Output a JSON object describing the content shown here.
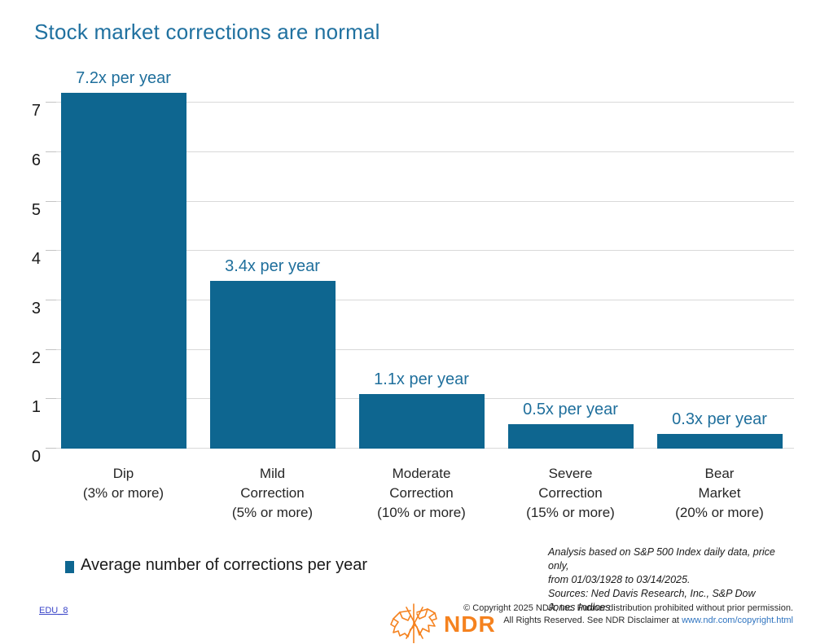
{
  "title": "Stock market corrections are normal",
  "chart_data": {
    "type": "bar",
    "title": "Stock market corrections are normal",
    "categories": [
      "Dip\n(3% or more)",
      "Mild\nCorrection\n(5% or more)",
      "Moderate\nCorrection\n(10% or more)",
      "Severe\nCorrection\n(15% or more)",
      "Bear\nMarket\n(20% or more)"
    ],
    "values": [
      7.2,
      3.4,
      1.1,
      0.5,
      0.3
    ],
    "bar_labels": [
      "7.2x per year",
      "3.4x per year",
      "1.1x per year",
      "0.5x per year",
      "0.3x per year"
    ],
    "xlabel": "",
    "ylabel": "",
    "ylim": [
      0,
      7.2
    ],
    "yticks": [
      0,
      1,
      2,
      3,
      4,
      5,
      6,
      7
    ],
    "grid": true,
    "legend_position": "bottom-left",
    "bar_color": "#0E6690",
    "bar_label_color": "#1F6F9C",
    "gridline_color": "#D9D9D9"
  },
  "legend": {
    "marker": "square-icon",
    "marker_color": "#0E6690",
    "label": "Average number of corrections per year"
  },
  "footnote": {
    "text": "Analysis based on S&P 500 Index daily data, price only,\nfrom 01/03/1928 to 03/14/2025.\nSources: Ned Davis Research, Inc., S&P Dow Jones Indices"
  },
  "footer": {
    "doc_link": "EDU_8",
    "logo_text": "NDR",
    "logo_color": "#F5821F",
    "copyright_line1": "© Copyright 2025 NDR, Inc. Further distribution prohibited without prior permission.",
    "copyright_line2_prefix": "All Rights Reserved. See NDR Disclaimer at ",
    "copyright_link": "www.ndr.com/copyright.html"
  },
  "colors": {
    "title": "#2071A0",
    "bar": "#0E6690",
    "accent_orange": "#F5821F",
    "link_blue": "#2F74C0",
    "doc_link_blue": "#3A45C8"
  }
}
